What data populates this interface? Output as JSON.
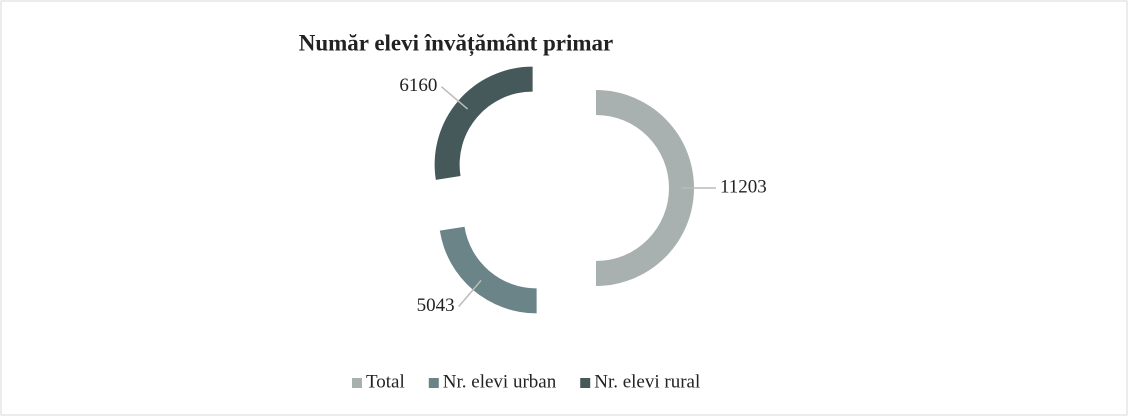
{
  "chart_data": {
    "type": "donut",
    "title": "Număr elevi învățământ primar",
    "categories": [
      "Total",
      "Nr. elevi urban",
      "Nr. elevi rural"
    ],
    "values": [
      11203,
      5043,
      6160
    ],
    "colors": [
      "#a9b0b0",
      "#6b8487",
      "#46595a"
    ],
    "legend": "bottom"
  }
}
